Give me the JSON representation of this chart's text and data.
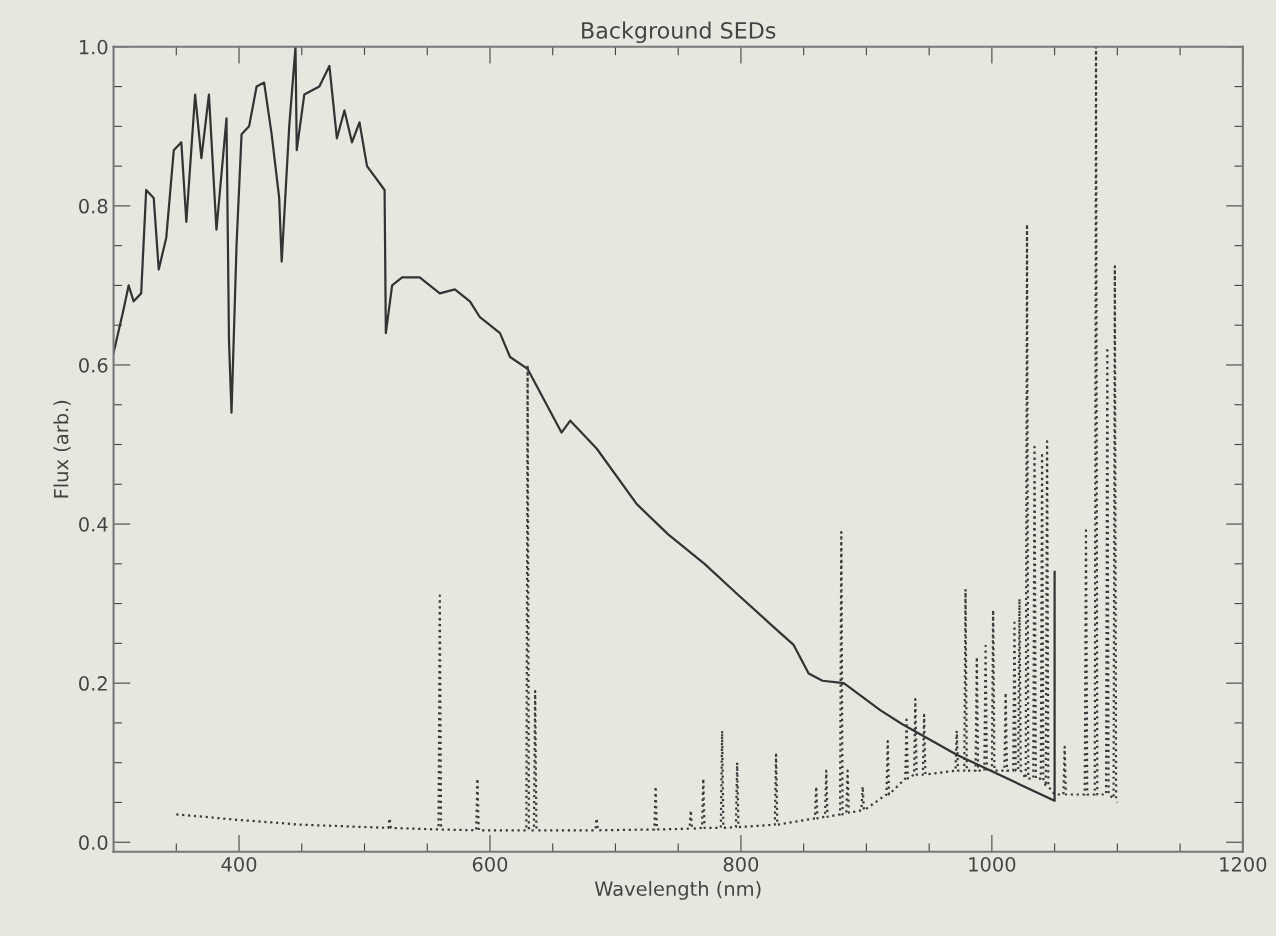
{
  "chart_data": {
    "type": "line",
    "title": "Background SEDs",
    "xlabel": "Wavelength (nm)",
    "ylabel": "Flux (arb.)",
    "xlim": [
      300,
      1200
    ],
    "ylim": [
      -0.012,
      1.0
    ],
    "xticks": [
      {
        "value": 350,
        "label": null
      },
      400,
      {
        "value": 450,
        "label": null
      },
      {
        "value": 500,
        "label": null
      },
      {
        "value": 550,
        "label": null
      },
      600,
      {
        "value": 650,
        "label": null
      },
      {
        "value": 700,
        "label": null
      },
      {
        "value": 750,
        "label": null
      },
      800,
      {
        "value": 850,
        "label": null
      },
      {
        "value": 900,
        "label": null
      },
      {
        "value": 950,
        "label": null
      },
      1000,
      {
        "value": 1050,
        "label": null
      },
      {
        "value": 1100,
        "label": null
      },
      {
        "value": 1150,
        "label": null
      },
      1200
    ],
    "yticks": [
      {
        "value": 0,
        "label": "0.0"
      },
      {
        "value": 0.05,
        "label": null
      },
      {
        "value": 0.1,
        "label": null
      },
      {
        "value": 0.15,
        "label": null
      },
      0.2,
      {
        "value": 0.25,
        "label": null
      },
      {
        "value": 0.3,
        "label": null
      },
      {
        "value": 0.35,
        "label": null
      },
      0.4,
      {
        "value": 0.45,
        "label": null
      },
      {
        "value": 0.5,
        "label": null
      },
      {
        "value": 0.55,
        "label": null
      },
      0.6,
      {
        "value": 0.65,
        "label": null
      },
      {
        "value": 0.7,
        "label": null
      },
      {
        "value": 0.75,
        "label": null
      },
      0.8,
      {
        "value": 0.85,
        "label": null
      },
      {
        "value": 0.9,
        "label": null
      },
      {
        "value": 0.95,
        "label": null
      },
      {
        "value": 1.0,
        "label": "1.0"
      }
    ],
    "grid": false,
    "series": [
      {
        "color": "#333333",
        "line_style": "solid",
        "x": [
          300,
          308,
          312,
          316,
          322,
          326,
          332,
          336,
          342,
          348,
          354,
          358,
          365,
          370,
          376,
          382,
          390,
          392,
          394,
          398,
          402,
          408,
          414,
          420,
          426,
          432,
          434,
          440,
          445,
          446,
          452,
          464,
          472,
          478,
          484,
          490,
          496,
          502,
          516,
          517,
          522,
          530,
          544,
          560,
          572,
          584,
          592,
          608,
          616,
          630,
          657,
          664,
          685,
          717,
          742,
          771,
          797,
          825,
          842,
          854,
          865,
          882,
          911,
          928,
          972,
          1050,
          1050
        ],
        "values": [
          0.615,
          0.67,
          0.7,
          0.68,
          0.69,
          0.82,
          0.81,
          0.72,
          0.76,
          0.87,
          0.88,
          0.78,
          0.94,
          0.86,
          0.94,
          0.77,
          0.91,
          0.63,
          0.54,
          0.75,
          0.89,
          0.9,
          0.95,
          0.955,
          0.89,
          0.81,
          0.73,
          0.9,
          1.0,
          0.87,
          0.94,
          0.95,
          0.976,
          0.885,
          0.92,
          0.88,
          0.905,
          0.85,
          0.82,
          0.64,
          0.7,
          0.71,
          0.71,
          0.69,
          0.695,
          0.68,
          0.66,
          0.64,
          0.61,
          0.595,
          0.515,
          0.53,
          0.495,
          0.425,
          0.387,
          0.35,
          0.312,
          0.272,
          0.248,
          0.212,
          0.203,
          0.2,
          0.166,
          0.149,
          0.11,
          0.052,
          0.34
        ]
      },
      {
        "color": "#3a3a3a",
        "line_style": "dotted",
        "x": [
          350,
          400,
          450,
          519,
          520,
          521,
          559,
          560,
          561,
          589,
          590,
          591,
          629,
          630,
          631,
          635,
          636,
          637,
          684,
          685,
          686,
          731,
          732,
          733,
          759,
          760,
          761,
          769,
          770,
          771,
          784,
          785,
          786,
          796,
          797,
          798,
          827,
          828,
          829,
          859,
          860,
          861,
          867,
          868,
          869,
          879,
          880,
          881,
          884,
          885,
          886,
          896,
          897,
          898,
          916,
          917,
          918,
          931,
          932,
          933,
          938,
          939,
          940,
          945,
          946,
          947,
          971,
          972,
          973,
          978,
          979,
          980,
          987,
          988,
          989,
          994,
          995,
          996,
          1000,
          1001,
          1002,
          1010,
          1011,
          1012,
          1017,
          1018,
          1019,
          1021,
          1022,
          1023,
          1027,
          1028,
          1029,
          1033,
          1034,
          1035,
          1039,
          1040,
          1041,
          1043,
          1044,
          1045,
          1050,
          1057,
          1058,
          1059,
          1066,
          1074,
          1075,
          1076,
          1082,
          1083,
          1084,
          1091,
          1092,
          1093,
          1097,
          1098,
          1099,
          1100
        ],
        "values": [
          0.035,
          0.028,
          0.022,
          0.018,
          0.03,
          0.018,
          0.016,
          0.31,
          0.016,
          0.015,
          0.08,
          0.015,
          0.015,
          0.6,
          0.015,
          0.015,
          0.19,
          0.015,
          0.015,
          0.03,
          0.015,
          0.016,
          0.07,
          0.016,
          0.017,
          0.04,
          0.017,
          0.018,
          0.08,
          0.018,
          0.018,
          0.14,
          0.018,
          0.019,
          0.1,
          0.019,
          0.022,
          0.11,
          0.022,
          0.03,
          0.07,
          0.03,
          0.032,
          0.09,
          0.032,
          0.035,
          0.39,
          0.035,
          0.037,
          0.09,
          0.037,
          0.04,
          0.07,
          0.04,
          0.06,
          0.127,
          0.06,
          0.08,
          0.154,
          0.08,
          0.085,
          0.18,
          0.085,
          0.085,
          0.16,
          0.085,
          0.09,
          0.14,
          0.09,
          0.09,
          0.318,
          0.09,
          0.09,
          0.233,
          0.09,
          0.09,
          0.247,
          0.09,
          0.09,
          0.292,
          0.09,
          0.09,
          0.188,
          0.09,
          0.09,
          0.276,
          0.09,
          0.09,
          0.306,
          0.09,
          0.08,
          0.777,
          0.08,
          0.08,
          0.497,
          0.08,
          0.08,
          0.49,
          0.08,
          0.07,
          0.504,
          0.07,
          0.06,
          0.06,
          0.12,
          0.06,
          0.06,
          0.06,
          0.392,
          0.06,
          0.06,
          1.0,
          0.06,
          0.06,
          0.622,
          0.06,
          0.055,
          0.724,
          0.055,
          0.05
        ]
      }
    ]
  }
}
